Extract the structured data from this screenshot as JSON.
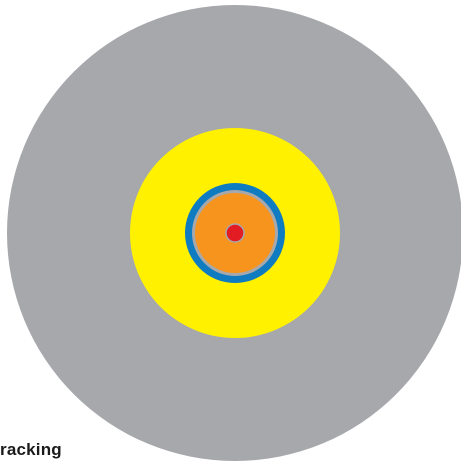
{
  "caption": "racking",
  "rings": [
    {
      "name": "outer-gray-disc",
      "color": "#a7a8ac"
    },
    {
      "name": "yellow-ring",
      "color": "#fff100"
    },
    {
      "name": "blue-ring",
      "color": "#0f7bc0"
    },
    {
      "name": "gray-separator-ring",
      "color": "#a7a8ac"
    },
    {
      "name": "orange-core",
      "color": "#f7941d"
    },
    {
      "name": "red-center-dot",
      "color": "#e31b23"
    }
  ]
}
